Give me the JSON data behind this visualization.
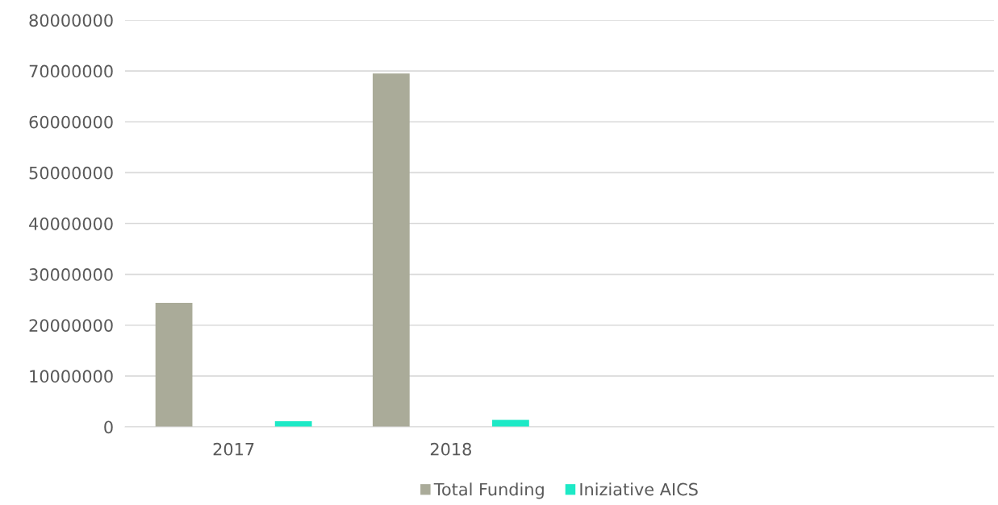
{
  "chart_data": {
    "type": "bar",
    "categories": [
      "2017",
      "2018",
      null,
      null
    ],
    "series": [
      {
        "name": "Total Funding",
        "color": "#aaab99",
        "values": [
          24400000,
          69500000,
          null,
          null
        ]
      },
      {
        "name": "Iniziative AICS",
        "color": "#1de9c6",
        "values": [
          1100000,
          1400000,
          null,
          null
        ]
      }
    ],
    "ylim": [
      0,
      80000000
    ],
    "yticks": [
      0,
      10000000,
      20000000,
      30000000,
      40000000,
      50000000,
      60000000,
      70000000,
      80000000
    ],
    "grid": "y",
    "legend": "bottom"
  }
}
